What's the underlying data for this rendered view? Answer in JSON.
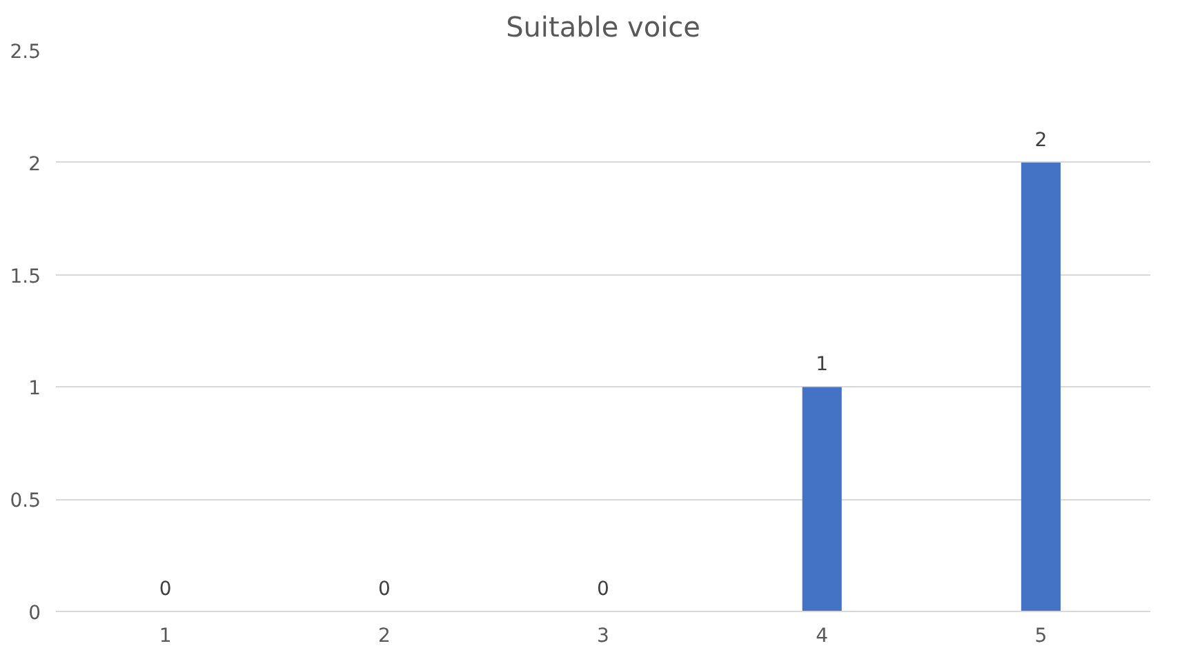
{
  "chart_data": {
    "type": "bar",
    "title": "Suitable voice",
    "categories": [
      "1",
      "2",
      "3",
      "4",
      "5"
    ],
    "values": [
      0,
      0,
      0,
      1,
      2
    ],
    "color": "#4472c4",
    "ylim": [
      0,
      2.5
    ],
    "yticks": [
      0,
      0.5,
      1,
      1.5,
      2,
      2.5
    ],
    "grid": "y",
    "data_labels": true
  }
}
